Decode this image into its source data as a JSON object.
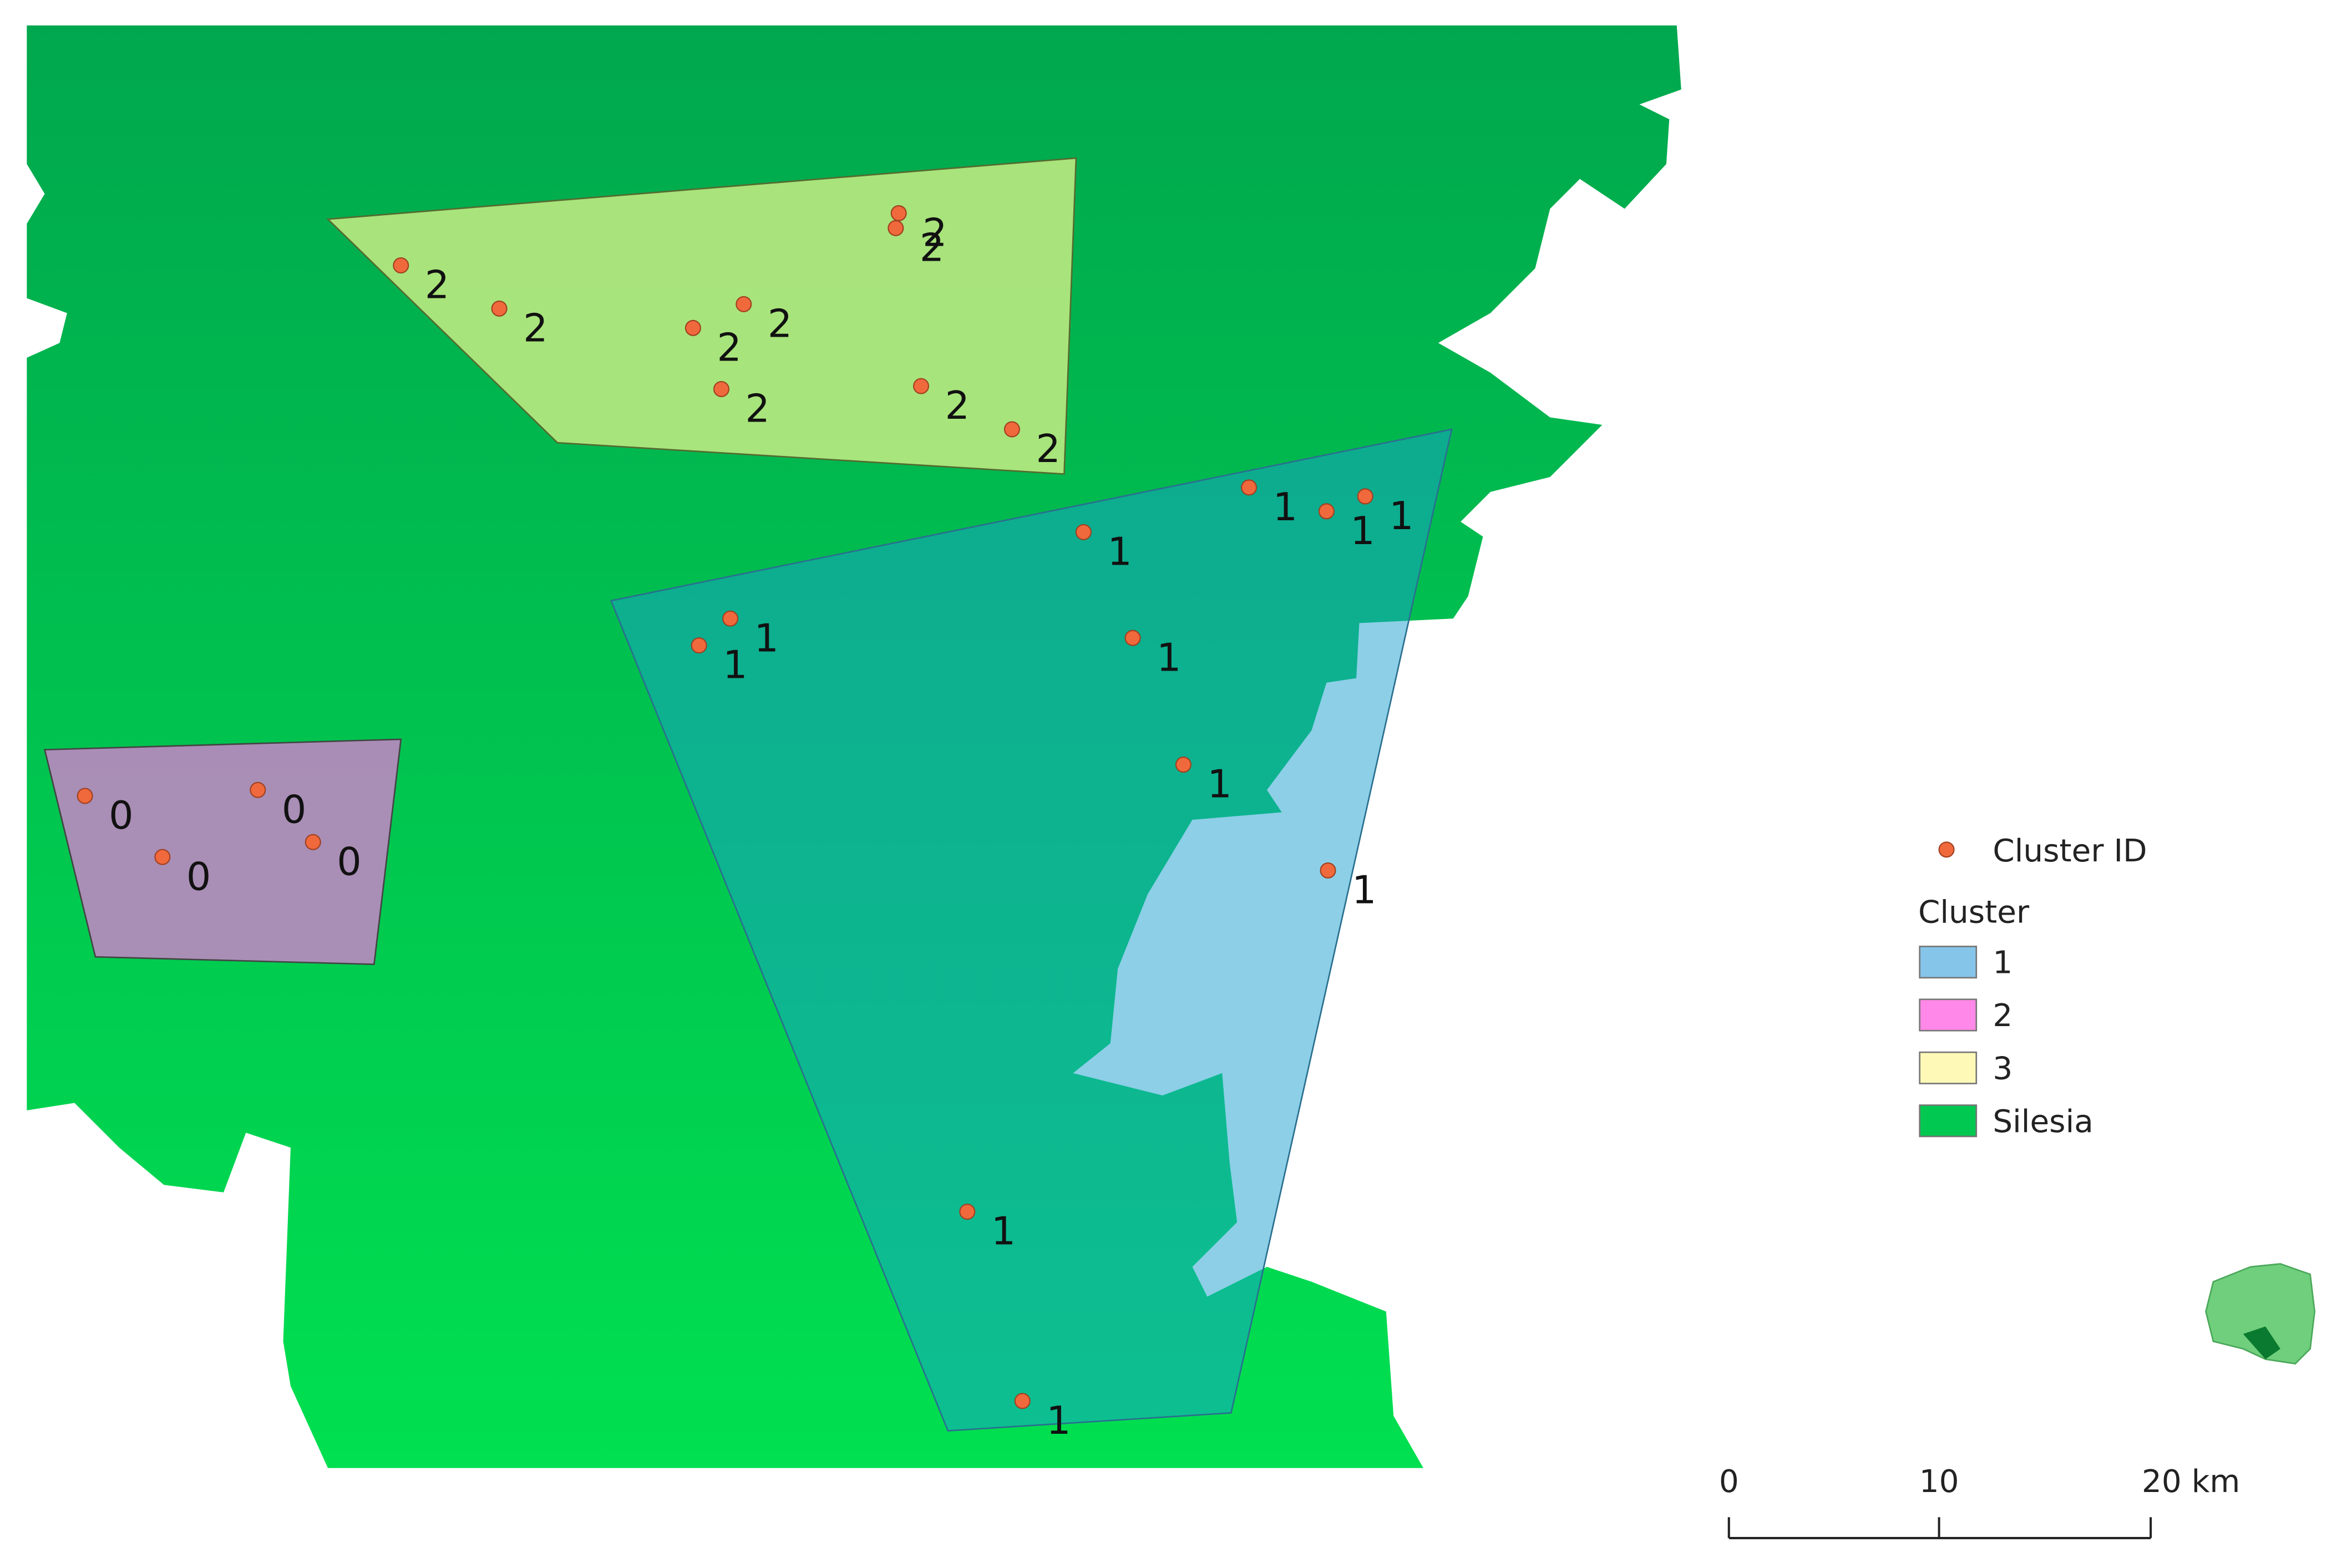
{
  "map": {
    "point_labels": [
      "2",
      "2",
      "2",
      "2",
      "2",
      "2",
      "2",
      "2",
      "2",
      "1",
      "1",
      "1",
      "1",
      "1",
      "1",
      "1",
      "1",
      "1",
      "1",
      "1",
      "0",
      "0",
      "0",
      "0"
    ],
    "legend": {
      "points_title": "Cluster ID",
      "title": "Cluster",
      "items": [
        {
          "label": "1",
          "color": "#86c5ea"
        },
        {
          "label": "2",
          "color": "#ff88e8"
        },
        {
          "label": "3",
          "color": "#fff9b8"
        },
        {
          "label": "Silesia",
          "color": "#00c850"
        }
      ]
    },
    "scale_bar": {
      "labels": [
        "0",
        "10",
        "20 km"
      ]
    }
  }
}
